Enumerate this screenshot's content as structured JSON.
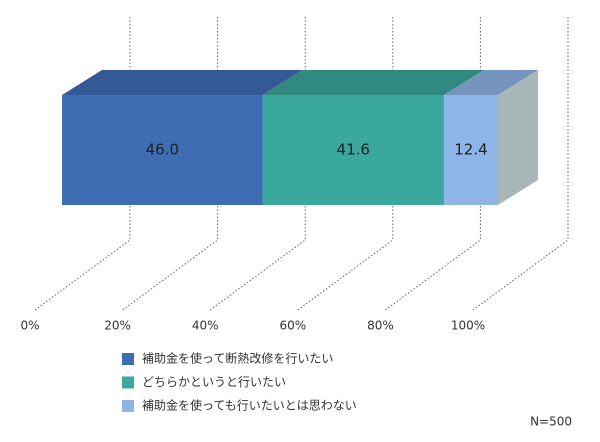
{
  "chart_data": {
    "type": "bar",
    "stacked": true,
    "orientation": "horizontal",
    "categories": [
      null
    ],
    "series": [
      {
        "name": "補助金を使って断熱改修を行いたい",
        "color": "#3f6db4",
        "values": [
          46.0
        ],
        "value_labels": [
          "46.0"
        ]
      },
      {
        "name": "どちらかというと行いたい",
        "color": "#3aa89c",
        "values": [
          41.6
        ],
        "value_labels": [
          "41.6"
        ]
      },
      {
        "name": "補助金を使っても行いたいとは思わない",
        "color": "#8fb4e8",
        "values": [
          12.4
        ],
        "value_labels": [
          "12.4"
        ]
      }
    ],
    "xlim": [
      0,
      100
    ],
    "xticks": [
      {
        "value": 0,
        "label": "0%"
      },
      {
        "value": 20,
        "label": "20%"
      },
      {
        "value": 40,
        "label": "40%"
      },
      {
        "value": 60,
        "label": "60%"
      },
      {
        "value": 80,
        "label": "80%"
      },
      {
        "value": 100,
        "label": "100%"
      }
    ],
    "grid": true,
    "note": "N=500"
  }
}
